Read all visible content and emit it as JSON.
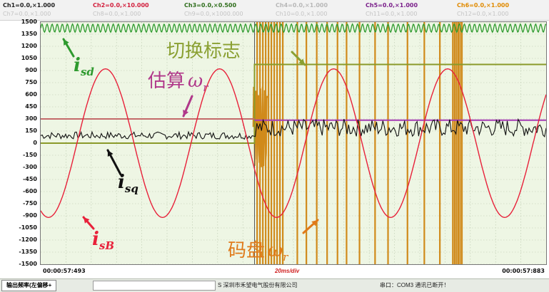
{
  "channels": [
    {
      "label": "Ch1=0.0,×1.000",
      "color": "#222222"
    },
    {
      "label": "Ch2=0.0,×10.000",
      "color": "#d21e3c"
    },
    {
      "label": "Ch3=0.0,×0.500",
      "color": "#2f6e1c"
    },
    {
      "label": "Ch4=0.0,×1.000",
      "color": "#b8b8b8"
    },
    {
      "label": "Ch5=0.0,×1.000",
      "color": "#7a1f8a"
    },
    {
      "label": "Ch6=0.0,×1.000",
      "color": "#e08a00"
    },
    {
      "label": "Ch7=0.0,×1.000",
      "color": "#c4c4c4"
    },
    {
      "label": "Ch8=0.0,×1.000",
      "color": "#c4c4c4"
    },
    {
      "label": "Ch9=0.0,×1000.000",
      "color": "#c4c4c4"
    },
    {
      "label": "Ch10=0.0,×1.000",
      "color": "#c4c4c4"
    },
    {
      "label": "Ch11=0.0,×1.000",
      "color": "#c4c4c4"
    },
    {
      "label": "Ch12=0.0,×1.000",
      "color": "#c4c4c4"
    }
  ],
  "y_ticks": [
    "1500",
    "1350",
    "1200",
    "1050",
    "900",
    "750",
    "600",
    "450",
    "300",
    "150",
    "0",
    "-150",
    "-300",
    "-450",
    "-600",
    "-750",
    "-900",
    "-1050",
    "-1200",
    "-1350",
    "-1500"
  ],
  "time_start": "00:00:57:493",
  "time_end": "00:00:57:883",
  "time_scale": "20ms/div",
  "annotations": {
    "isd": "i",
    "isd_sub": "sd",
    "switch_flag": "切换标志",
    "estimated_label": "估算",
    "estimated_omega": "ω",
    "estimated_sub": "r",
    "isq": "i",
    "isq_sub": "sq",
    "isb": "i",
    "isb_sub": "sB",
    "encoder_label": "码盘",
    "encoder_omega": "ω",
    "encoder_sub": "r"
  },
  "status_bar": {
    "tab_label": "输出频率(左偏移+",
    "company": "S 深圳市禾望电气股份有限公司",
    "port": "串口：COM3 通讯已断开！"
  },
  "chart_data": {
    "type": "line",
    "ylim": [
      -1500,
      1500
    ],
    "y_ticks": [
      1500,
      1350,
      1200,
      1050,
      900,
      750,
      600,
      450,
      300,
      150,
      0,
      -150,
      -300,
      -450,
      -600,
      -750,
      -900,
      -1050,
      -1200,
      -1350,
      -1500
    ],
    "x_range_ms": [
      0,
      390
    ],
    "switch_time_ms": 165,
    "series": [
      {
        "name": "isd",
        "color": "#2e9a2e",
        "level": 1425,
        "ripple": 50
      },
      {
        "name": "estimated ωr",
        "color": "#b03a8a",
        "before": 300,
        "after": 285
      },
      {
        "name": "isq",
        "color": "#111111",
        "before": 95,
        "after": 190
      },
      {
        "name": "isB",
        "color": "#e8213a",
        "amplitude": 920,
        "period_ms": 88,
        "peak_ms": [
          50,
          137,
          225,
          313
        ]
      },
      {
        "name": "switch flag",
        "color": "#8a9a2a",
        "before": 0,
        "after": 975
      },
      {
        "name": "encoder ωr",
        "color": "#d08a1a",
        "pulse_bursts": true
      }
    ]
  }
}
